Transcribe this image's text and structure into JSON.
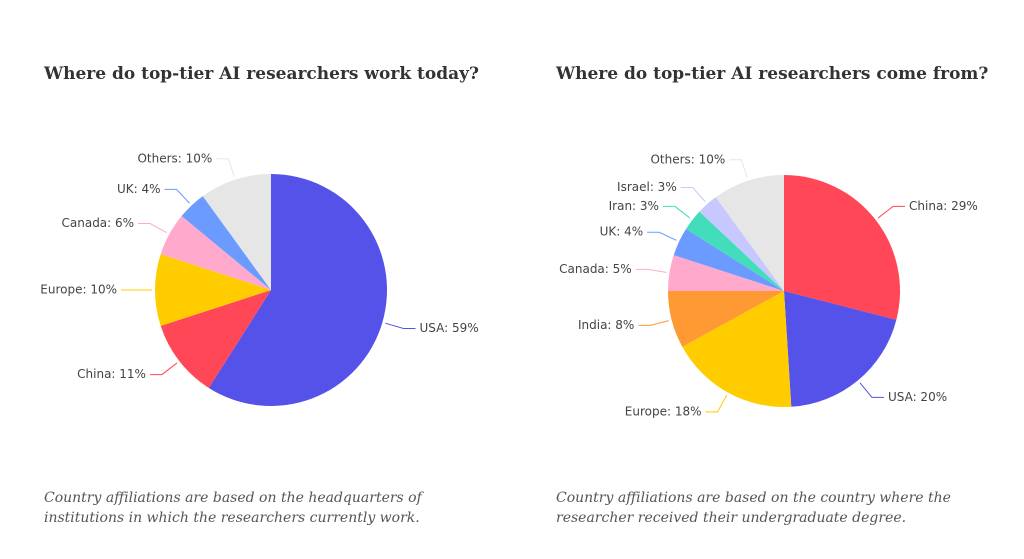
{
  "chart_data": [
    {
      "type": "pie",
      "title": "Where do top-tier AI researchers work today?",
      "caption": "Country affiliations are based on the headquarters of institutions in which the researchers currently work.",
      "values": [
        59,
        11,
        10,
        6,
        4,
        10
      ],
      "value_labels": [
        "USA: 59%",
        "China: 11%",
        "Europe: 10%",
        "Canada: 6%",
        "UK: 4%",
        "Others: 10%"
      ],
      "colors": [
        "#5552ea",
        "#ff4757",
        "#ffcc00",
        "#ffaacc",
        "#6b9bff",
        "#e6e6e6"
      ]
    },
    {
      "type": "pie",
      "title": "Where do top-tier AI researchers come from?",
      "caption": "Country affiliations are based on the country where the researcher received their undergraduate degree.",
      "values": [
        29,
        20,
        18,
        8,
        5,
        4,
        3,
        3,
        10
      ],
      "value_labels": [
        "China: 29%",
        "USA: 20%",
        "Europe: 18%",
        "India: 8%",
        "Canada: 5%",
        "UK: 4%",
        "Iran: 3%",
        "Israel: 3%",
        "Others: 10%"
      ],
      "colors": [
        "#ff4757",
        "#5552ea",
        "#ffcc00",
        "#ff9933",
        "#ffaacc",
        "#6b9bff",
        "#44ddbb",
        "#c6c8ff",
        "#e6e6e6"
      ]
    }
  ]
}
